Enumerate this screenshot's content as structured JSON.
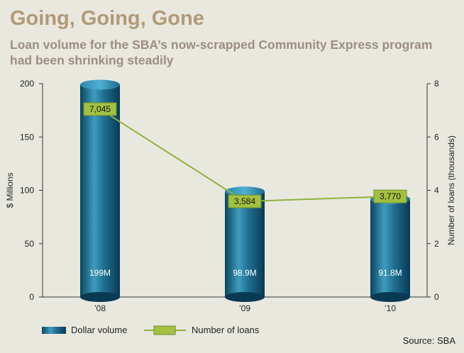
{
  "title": "Going, Going, Gone",
  "subtitle": "Loan volume for the SBA’s now-scrapped Community Express program had been shrinking steadily",
  "source": "Source: SBA",
  "colors": {
    "bar_dark": "#0c4c66",
    "bar_light": "#3f9bbd",
    "line": "#8fb23b",
    "label_bg": "#a3c141"
  },
  "chart_data": {
    "type": "bar",
    "categories": [
      "’08",
      "’09",
      "’10"
    ],
    "series": [
      {
        "name": "Dollar volume",
        "type": "bar",
        "axis": "left",
        "values": [
          199,
          98.9,
          91.8
        ],
        "labels": [
          "199M",
          "98.9M",
          "91.8M"
        ]
      },
      {
        "name": "Number of loans",
        "type": "line",
        "axis": "right",
        "values": [
          7.045,
          3.584,
          3.77
        ],
        "labels": [
          "7,045",
          "3,584",
          "3,770"
        ]
      }
    ],
    "ylabel": "$ Millions",
    "y2label": "Number of loans (thousands)",
    "ylim": [
      0,
      200
    ],
    "y2lim": [
      0,
      8
    ],
    "yticks": [
      "0",
      "50",
      "100",
      "150",
      "200"
    ],
    "y2ticks": [
      "0",
      "2",
      "4",
      "6",
      "8"
    ],
    "legend_position": "bottom-left"
  }
}
